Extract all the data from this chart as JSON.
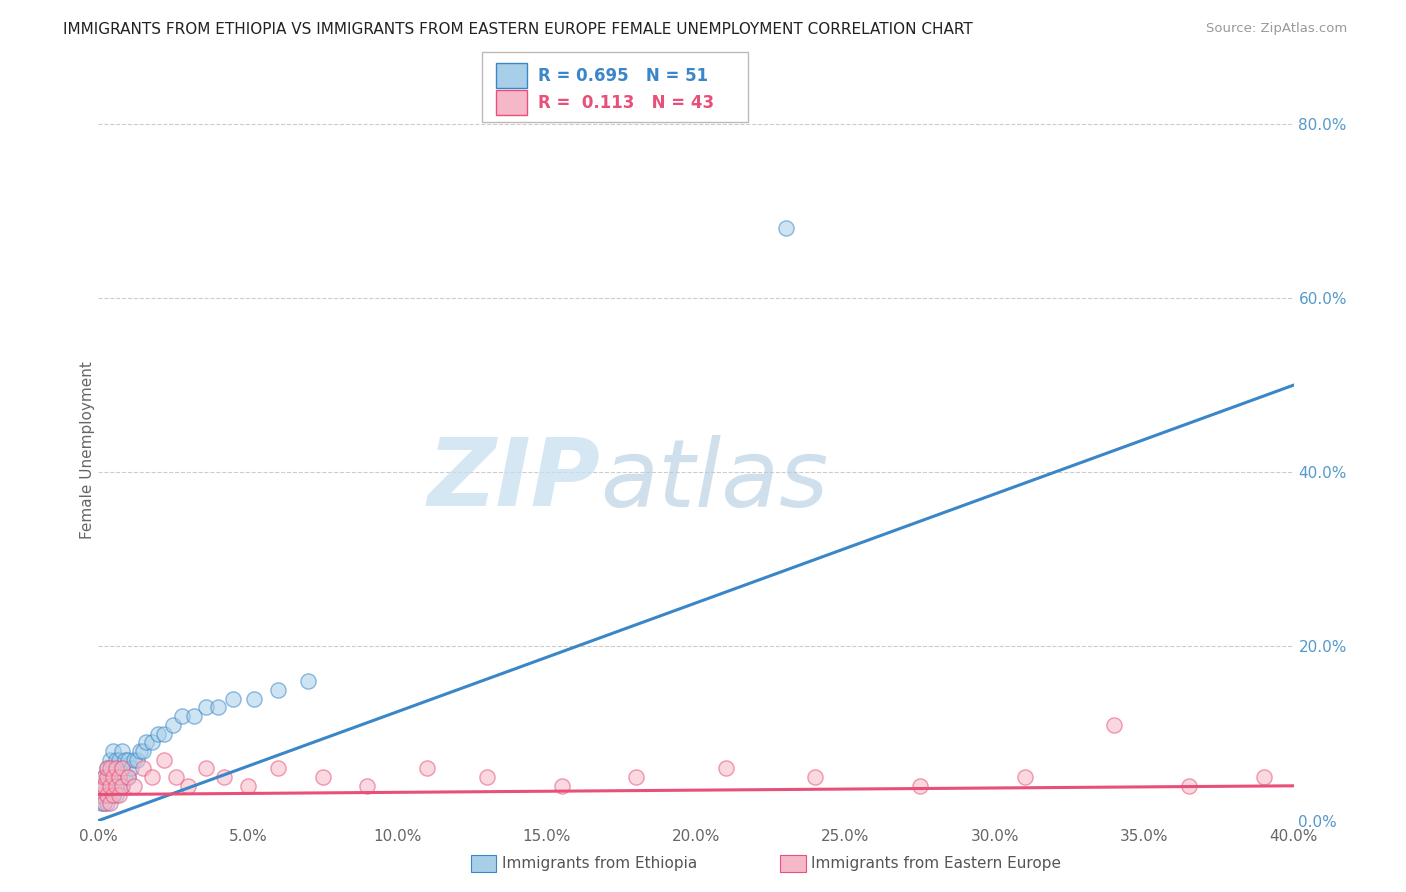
{
  "title": "IMMIGRANTS FROM ETHIOPIA VS IMMIGRANTS FROM EASTERN EUROPE FEMALE UNEMPLOYMENT CORRELATION CHART",
  "source": "Source: ZipAtlas.com",
  "ylabel": "Female Unemployment",
  "xlim": [
    0.0,
    0.4
  ],
  "ylim": [
    0.0,
    0.85
  ],
  "xticks": [
    0.0,
    0.05,
    0.1,
    0.15,
    0.2,
    0.25,
    0.3,
    0.35,
    0.4
  ],
  "yticks_right": [
    0.0,
    0.2,
    0.4,
    0.6,
    0.8
  ],
  "legend1_R": "0.695",
  "legend1_N": "51",
  "legend2_R": "0.113",
  "legend2_N": "43",
  "color_blue": "#a8cfe8",
  "color_pink": "#f5b8c8",
  "line_blue": "#3a86c8",
  "line_pink": "#e8507a",
  "watermark_zip": "ZIP",
  "watermark_atlas": "atlas",
  "background_color": "#ffffff",
  "ethiopia_x": [
    0.001,
    0.001,
    0.001,
    0.002,
    0.002,
    0.002,
    0.003,
    0.003,
    0.003,
    0.003,
    0.004,
    0.004,
    0.004,
    0.004,
    0.005,
    0.005,
    0.005,
    0.005,
    0.006,
    0.006,
    0.006,
    0.006,
    0.007,
    0.007,
    0.007,
    0.008,
    0.008,
    0.008,
    0.009,
    0.009,
    0.01,
    0.01,
    0.011,
    0.012,
    0.013,
    0.014,
    0.015,
    0.016,
    0.018,
    0.02,
    0.022,
    0.025,
    0.028,
    0.032,
    0.036,
    0.04,
    0.045,
    0.052,
    0.06,
    0.07,
    0.23
  ],
  "ethiopia_y": [
    0.02,
    0.03,
    0.04,
    0.02,
    0.04,
    0.05,
    0.02,
    0.03,
    0.05,
    0.06,
    0.03,
    0.04,
    0.05,
    0.07,
    0.03,
    0.04,
    0.06,
    0.08,
    0.03,
    0.04,
    0.06,
    0.07,
    0.04,
    0.05,
    0.07,
    0.04,
    0.06,
    0.08,
    0.05,
    0.07,
    0.05,
    0.07,
    0.06,
    0.07,
    0.07,
    0.08,
    0.08,
    0.09,
    0.09,
    0.1,
    0.1,
    0.11,
    0.12,
    0.12,
    0.13,
    0.13,
    0.14,
    0.14,
    0.15,
    0.16,
    0.68
  ],
  "eastern_x": [
    0.001,
    0.001,
    0.002,
    0.002,
    0.002,
    0.003,
    0.003,
    0.003,
    0.004,
    0.004,
    0.004,
    0.005,
    0.005,
    0.006,
    0.006,
    0.007,
    0.007,
    0.008,
    0.008,
    0.01,
    0.012,
    0.015,
    0.018,
    0.022,
    0.026,
    0.03,
    0.036,
    0.042,
    0.05,
    0.06,
    0.075,
    0.09,
    0.11,
    0.13,
    0.155,
    0.18,
    0.21,
    0.24,
    0.275,
    0.31,
    0.34,
    0.365,
    0.39
  ],
  "eastern_y": [
    0.03,
    0.04,
    0.02,
    0.04,
    0.05,
    0.03,
    0.05,
    0.06,
    0.02,
    0.04,
    0.06,
    0.03,
    0.05,
    0.04,
    0.06,
    0.03,
    0.05,
    0.04,
    0.06,
    0.05,
    0.04,
    0.06,
    0.05,
    0.07,
    0.05,
    0.04,
    0.06,
    0.05,
    0.04,
    0.06,
    0.05,
    0.04,
    0.06,
    0.05,
    0.04,
    0.05,
    0.06,
    0.05,
    0.04,
    0.05,
    0.11,
    0.04,
    0.05
  ],
  "blue_line_x": [
    0.0,
    0.4
  ],
  "blue_line_y": [
    0.0,
    0.5
  ],
  "pink_line_x": [
    0.0,
    0.4
  ],
  "pink_line_y": [
    0.03,
    0.04
  ]
}
